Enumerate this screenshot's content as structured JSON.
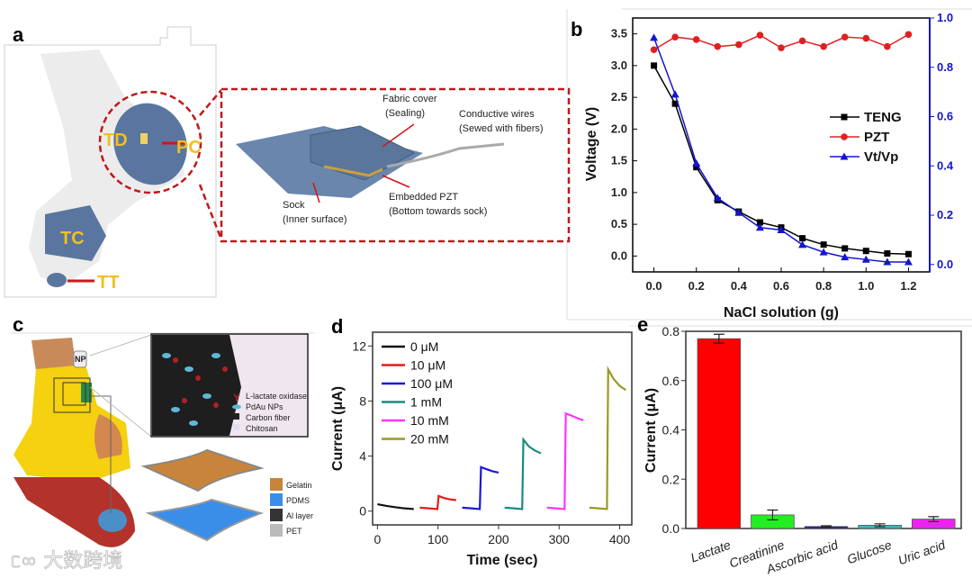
{
  "panels": {
    "a": {
      "label": "a",
      "callouts": {
        "td": "TD",
        "pc": "PC",
        "tc": "TC",
        "tt": "TT"
      },
      "inset": {
        "fabric_cover": "Fabric cover",
        "sealing": "(Sealing)",
        "conductive_wires": "Conductive wires",
        "sewed": "(Sewed with fibers)",
        "embedded_pzt": "Embedded PZT",
        "bottom": "(Bottom towards sock)",
        "sock": "Sock",
        "inner": "(Inner surface)"
      }
    },
    "b": {
      "label": "b"
    },
    "c": {
      "label": "c",
      "chip_label": "NP",
      "legend_top": [
        "L-lactate oxidase",
        "PdAu NPs",
        "Carbon fiber",
        "Chitosan"
      ],
      "legend_bottom": [
        "Gelatin",
        "PDMS",
        "Al layer",
        "PET"
      ],
      "colors": {
        "sock": "#f5d10f",
        "insole": "#b3322c",
        "pad": "#4a8fc8",
        "gelatin": "#c8843a",
        "pdms": "#3a8ee8",
        "al": "#333333",
        "pet": "#bbbbbb"
      }
    },
    "d": {
      "label": "d"
    },
    "e": {
      "label": "e"
    }
  },
  "watermark": "大数跨境",
  "chart_data": [
    {
      "type": "line",
      "panel": "b",
      "title": "",
      "xlabel": "NaCl solution (g)",
      "ylabel": "Voltage (V)",
      "x": [
        0.0,
        0.1,
        0.2,
        0.3,
        0.4,
        0.5,
        0.6,
        0.7,
        0.8,
        0.9,
        1.0,
        1.1,
        1.2
      ],
      "x_ticks": [
        "0.0",
        "0.2",
        "0.4",
        "0.6",
        "0.8",
        "1.0",
        "1.2"
      ],
      "y_ticks": [
        "0.0",
        "0.5",
        "1.0",
        "1.5",
        "2.0",
        "2.5",
        "3.0",
        "3.5"
      ],
      "y2_ticks": [
        "0.0",
        "0.2",
        "0.4",
        "0.6",
        "0.8",
        "1.0"
      ],
      "xlim": [
        -0.1,
        1.3
      ],
      "ylim": [
        -0.25,
        3.75
      ],
      "y2lim": [
        -0.03,
        1.0
      ],
      "legend_position": "center-right",
      "series": [
        {
          "name": "TENG",
          "axis": "left",
          "color": "#000000",
          "marker": "square",
          "values": [
            3.0,
            2.4,
            1.4,
            0.88,
            0.7,
            0.53,
            0.45,
            0.28,
            0.18,
            0.12,
            0.08,
            0.04,
            0.03
          ]
        },
        {
          "name": "PZT",
          "axis": "left",
          "color": "#e02020",
          "marker": "circle",
          "values": [
            3.25,
            3.45,
            3.41,
            3.3,
            3.33,
            3.48,
            3.28,
            3.39,
            3.3,
            3.45,
            3.43,
            3.3,
            3.49
          ]
        },
        {
          "name": "Vt/Vp",
          "axis": "right",
          "color": "#1515d0",
          "marker": "triangle",
          "values": [
            0.92,
            0.69,
            0.41,
            0.27,
            0.21,
            0.15,
            0.14,
            0.08,
            0.05,
            0.03,
            0.02,
            0.01,
            0.01
          ]
        }
      ]
    },
    {
      "type": "line",
      "panel": "d",
      "xlabel": "Time (sec)",
      "ylabel": "Current (μA)",
      "x_ticks": [
        "0",
        "100",
        "200",
        "300",
        "400"
      ],
      "y_ticks": [
        "0",
        "4",
        "8",
        "12"
      ],
      "xlim": [
        -8,
        420
      ],
      "ylim": [
        -1,
        13
      ],
      "legend_position": "top-left",
      "series": [
        {
          "name": "0 μM",
          "color": "#111111",
          "points": [
            [
              0,
              0.5
            ],
            [
              15,
              0.38
            ],
            [
              30,
              0.28
            ],
            [
              45,
              0.2
            ],
            [
              60,
              0.15
            ]
          ]
        },
        {
          "name": "10 μM",
          "color": "#e51b1b",
          "points": [
            [
              70,
              0.25
            ],
            [
              85,
              0.2
            ],
            [
              99,
              0.15
            ],
            [
              101,
              1.1
            ],
            [
              110,
              0.95
            ],
            [
              120,
              0.85
            ],
            [
              130,
              0.8
            ]
          ]
        },
        {
          "name": "100 μM",
          "color": "#1a1ad8",
          "points": [
            [
              140,
              0.25
            ],
            [
              155,
              0.2
            ],
            [
              169,
              0.15
            ],
            [
              171,
              3.2
            ],
            [
              180,
              3.05
            ],
            [
              190,
              2.9
            ],
            [
              200,
              2.8
            ]
          ]
        },
        {
          "name": "1 mM",
          "color": "#1a8a80",
          "points": [
            [
              210,
              0.25
            ],
            [
              225,
              0.2
            ],
            [
              239,
              0.15
            ],
            [
              241,
              5.2
            ],
            [
              250,
              4.7
            ],
            [
              260,
              4.4
            ],
            [
              270,
              4.2
            ]
          ]
        },
        {
          "name": "10 mM",
          "color": "#ff33ff",
          "points": [
            [
              280,
              0.25
            ],
            [
              295,
              0.2
            ],
            [
              309,
              0.15
            ],
            [
              311,
              7.1
            ],
            [
              320,
              6.95
            ],
            [
              330,
              6.75
            ],
            [
              340,
              6.6
            ]
          ]
        },
        {
          "name": "20 mM",
          "color": "#9a9a22",
          "points": [
            [
              350,
              0.25
            ],
            [
              365,
              0.2
            ],
            [
              379,
              0.15
            ],
            [
              381,
              10.3
            ],
            [
              390,
              9.6
            ],
            [
              400,
              9.1
            ],
            [
              410,
              8.8
            ]
          ]
        }
      ]
    },
    {
      "type": "bar",
      "panel": "e",
      "xlabel": "",
      "ylabel": "Current (μA)",
      "categories": [
        "Lactate",
        "Creatinine",
        "Ascorbic acid",
        "Glucose",
        "Uric acid"
      ],
      "values": [
        0.77,
        0.055,
        0.008,
        0.013,
        0.038
      ],
      "errors": [
        0.018,
        0.02,
        0.003,
        0.006,
        0.01
      ],
      "colors": [
        "#ff0000",
        "#22ee22",
        "#1a1a9a",
        "#33bbbb",
        "#ee22ee"
      ],
      "y_ticks": [
        "0.0",
        "0.2",
        "0.4",
        "0.6",
        "0.8"
      ],
      "ylim": [
        0,
        0.8
      ]
    }
  ]
}
